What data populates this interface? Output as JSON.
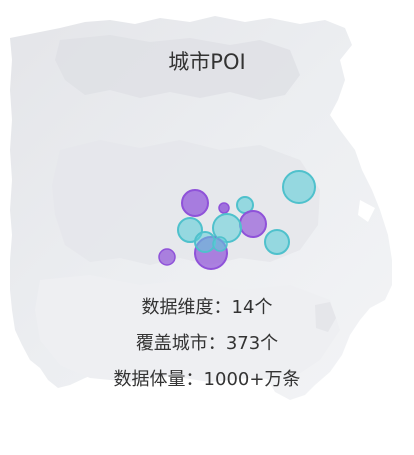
{
  "card": {
    "title": "城市POI",
    "stats": [
      {
        "label": "数据维度：",
        "value": "14个"
      },
      {
        "label": "覆盖城市：",
        "value": "373个"
      },
      {
        "label": "数据体量：",
        "value": "1000+万条"
      }
    ]
  },
  "colors": {
    "map_fill": "#e9eaee",
    "map_fill_dark": "#dcdde2",
    "bubble_purple": "#8f52d9",
    "bubble_cyan": "#5fcdd8",
    "text": "#333333"
  }
}
